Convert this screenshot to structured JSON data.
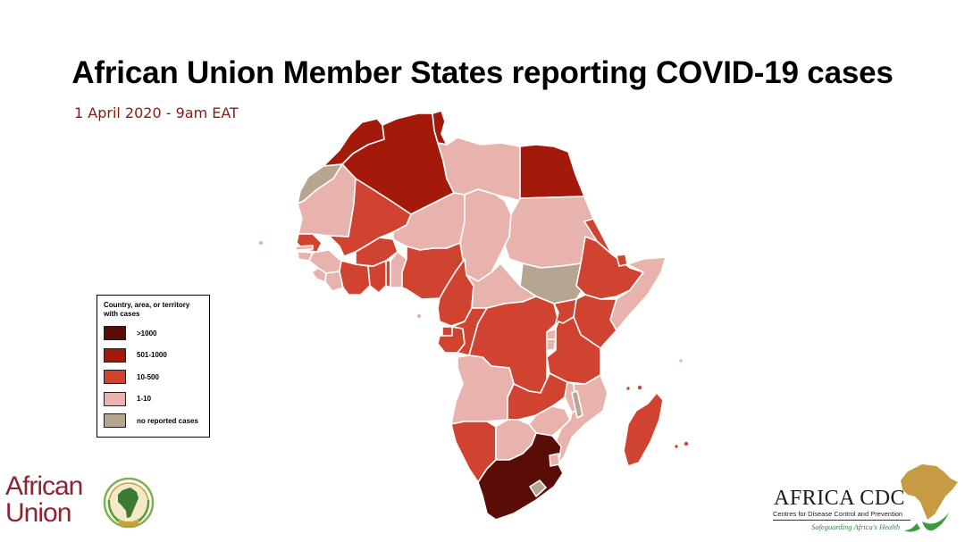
{
  "title": "African Union Member States reporting COVID-19 cases",
  "subtitle": "1 April 2020 - 9am EAT",
  "colors": {
    "over_1000": "#5a0d06",
    "c501_1000": "#a41a0a",
    "c10_500": "#cf4330",
    "c1_10": "#e8b3ac",
    "none": "#b6a591"
  },
  "legend": {
    "title": "Country, area, or territory with cases",
    "items": [
      {
        "label": ">1000",
        "color": "#5a0d06"
      },
      {
        "label": "501-1000",
        "color": "#a41a0a"
      },
      {
        "label": "10-500",
        "color": "#cf4330"
      },
      {
        "label": "1-10",
        "color": "#e8b3ac"
      },
      {
        "label": "no reported cases",
        "color": "#b6a591"
      }
    ]
  },
  "au_logo": {
    "line1": "African",
    "line2": "Union",
    "emblem_icon": "au-emblem-icon"
  },
  "cdc_logo": {
    "name": "AFRICA CDC",
    "subtitle": "Centres for Disease Control and Prevention",
    "tagline": "Safeguarding Africa's Health",
    "shape_icon": "africa-shape-icon"
  }
}
